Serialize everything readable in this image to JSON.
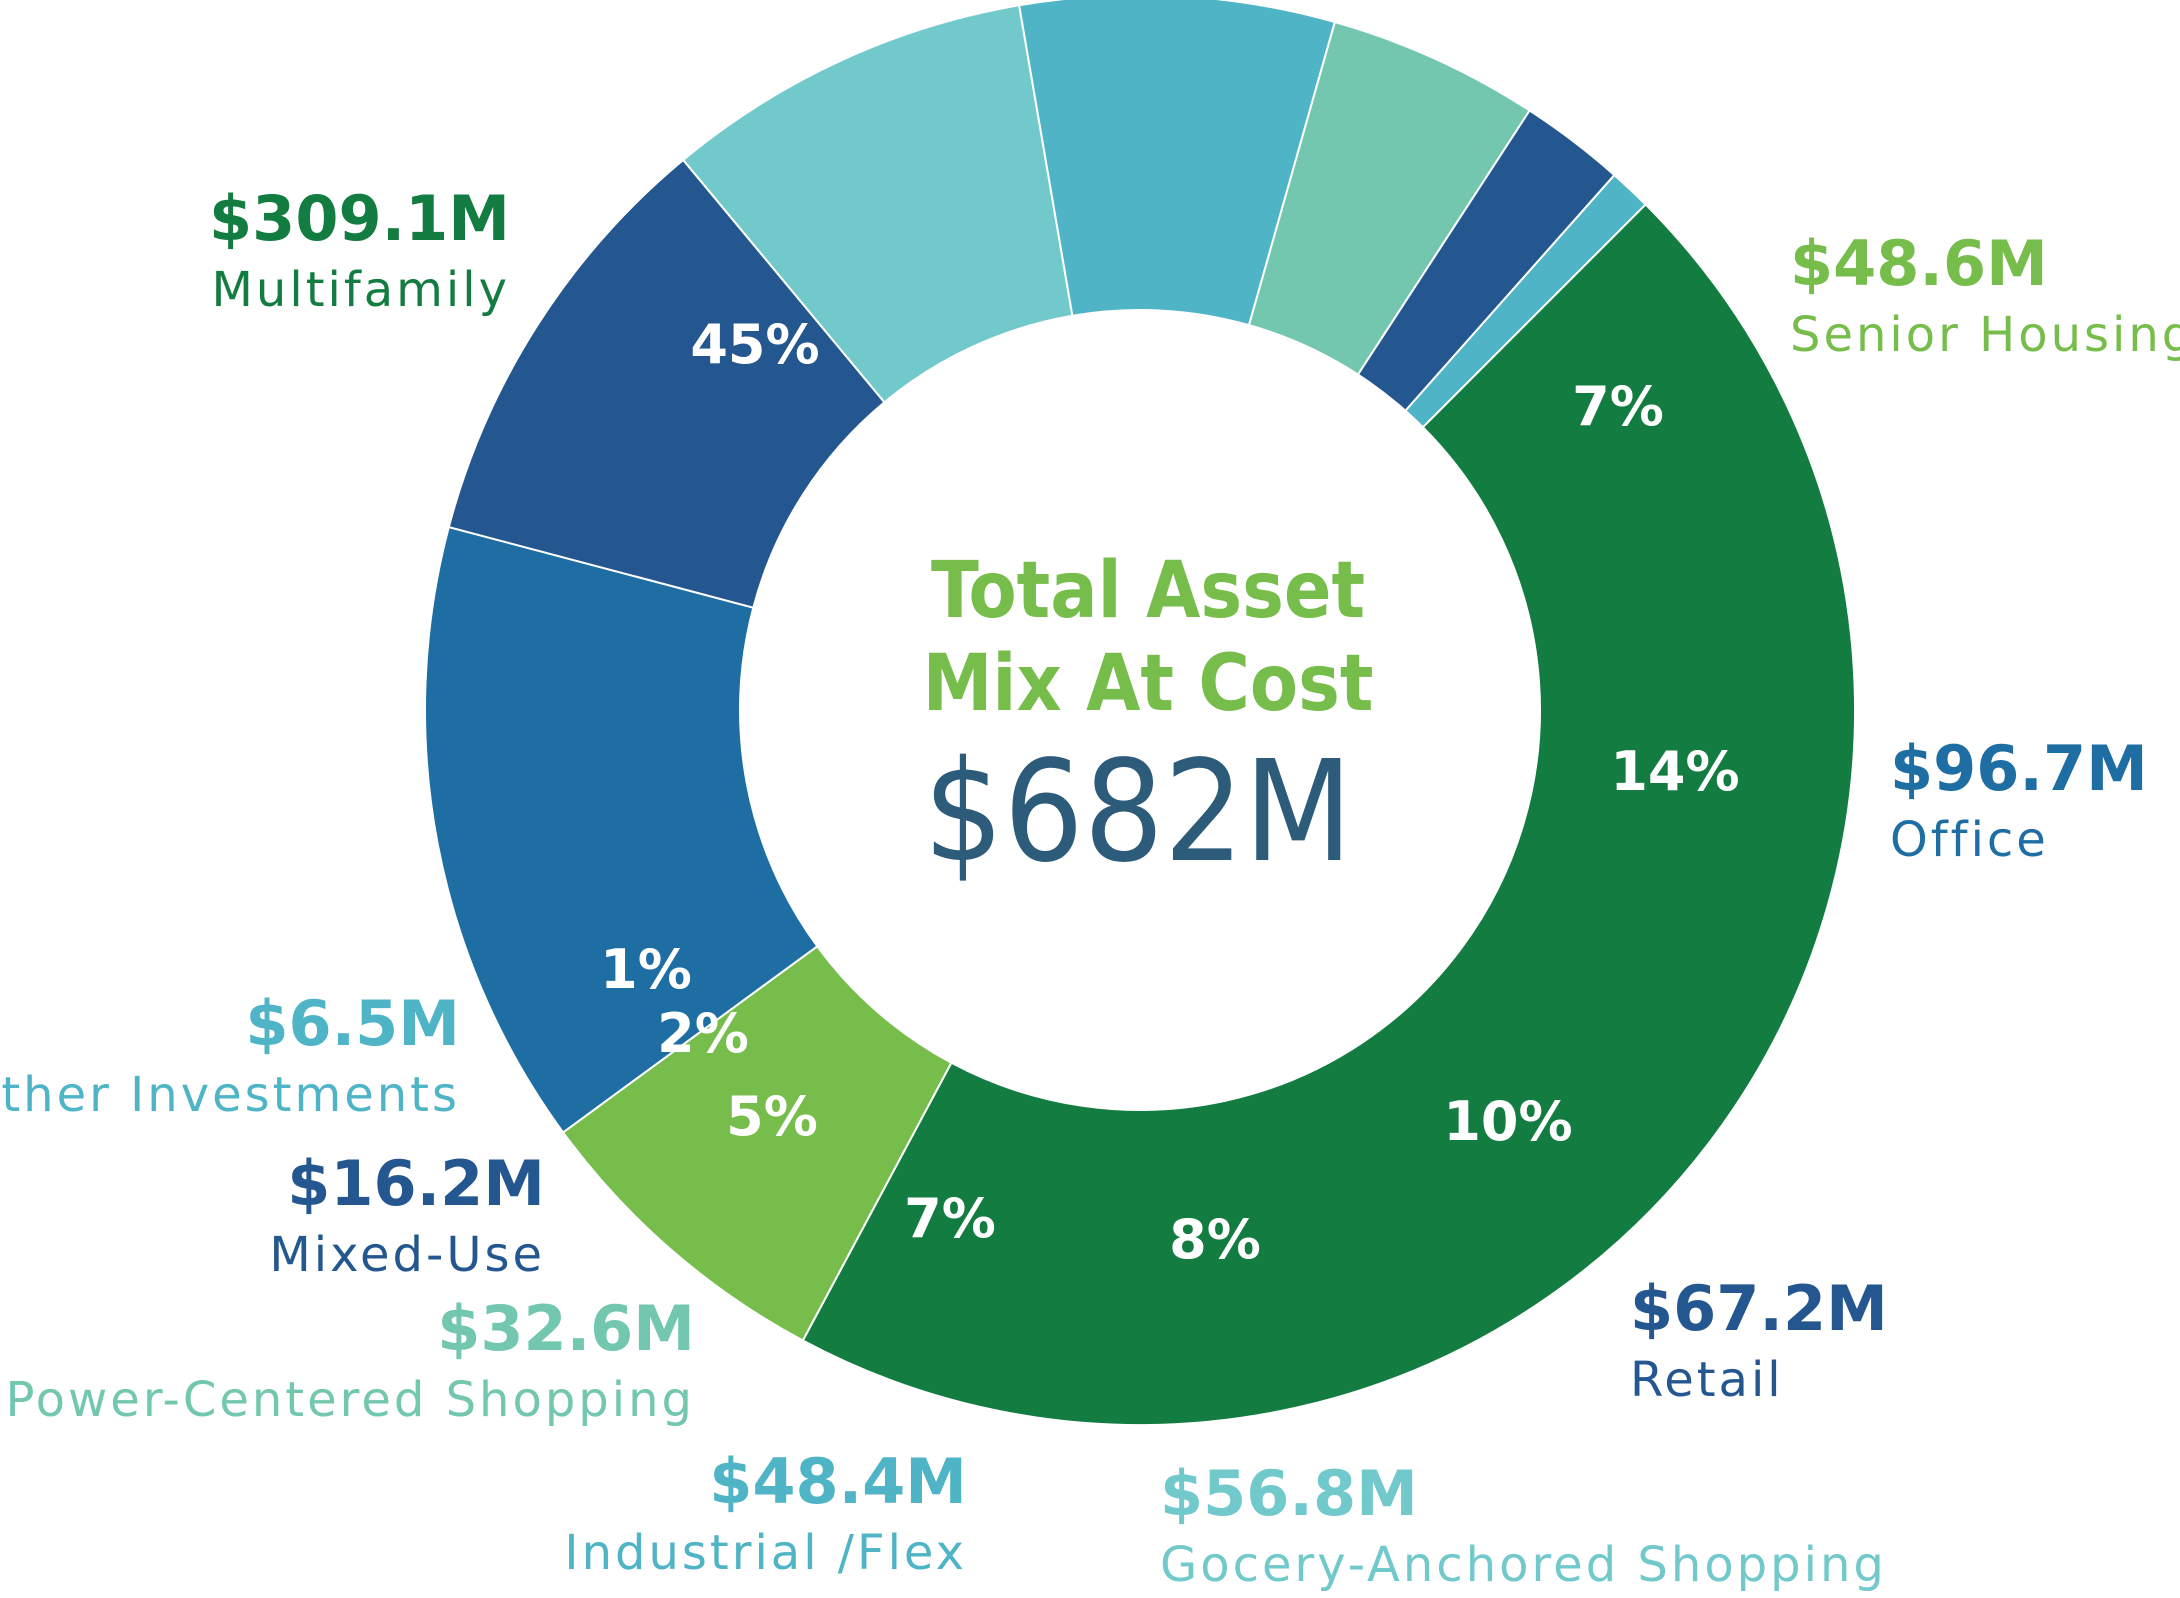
{
  "chart_data": {
    "type": "pie",
    "style": "donut",
    "title_lines": [
      "Total Asset",
      "Mix At Cost"
    ],
    "total": "$682M",
    "title_color": "#76bd4b",
    "total_color": "#2d5b7a",
    "slices": [
      {
        "label": "Multifamily",
        "amount": "$309.1M",
        "value": 309.1,
        "pct_label": "45%",
        "color": "#137c40"
      },
      {
        "label": "Senior Housing",
        "amount": "$48.6M",
        "value": 48.6,
        "pct_label": "7%",
        "color": "#76bd4b"
      },
      {
        "label": "Office",
        "amount": "$96.7M",
        "value": 96.7,
        "pct_label": "14%",
        "color": "#1e6ea4"
      },
      {
        "label": "Retail",
        "amount": "$67.2M",
        "value": 67.2,
        "pct_label": "10%",
        "color": "#24578f"
      },
      {
        "label": "Gocery-Anchored Shopping",
        "amount": "$56.8M",
        "value": 56.8,
        "pct_label": "8%",
        "color": "#72c9cc"
      },
      {
        "label": "Industrial /Flex",
        "amount": "$48.4M",
        "value": 48.4,
        "pct_label": "7%",
        "color": "#4fb4c5"
      },
      {
        "label": "Power-Centered Shopping",
        "amount": "$32.6M",
        "value": 32.6,
        "pct_label": "5%",
        "color": "#72c7ae"
      },
      {
        "label": "Mixed-Use",
        "amount": "$16.2M",
        "value": 16.2,
        "pct_label": "2%",
        "color": "#24578f"
      },
      {
        "label": "Other Investments",
        "amount": "$6.5M",
        "value": 6.5,
        "pct_label": "1%",
        "color": "#4fb4c5"
      }
    ]
  }
}
